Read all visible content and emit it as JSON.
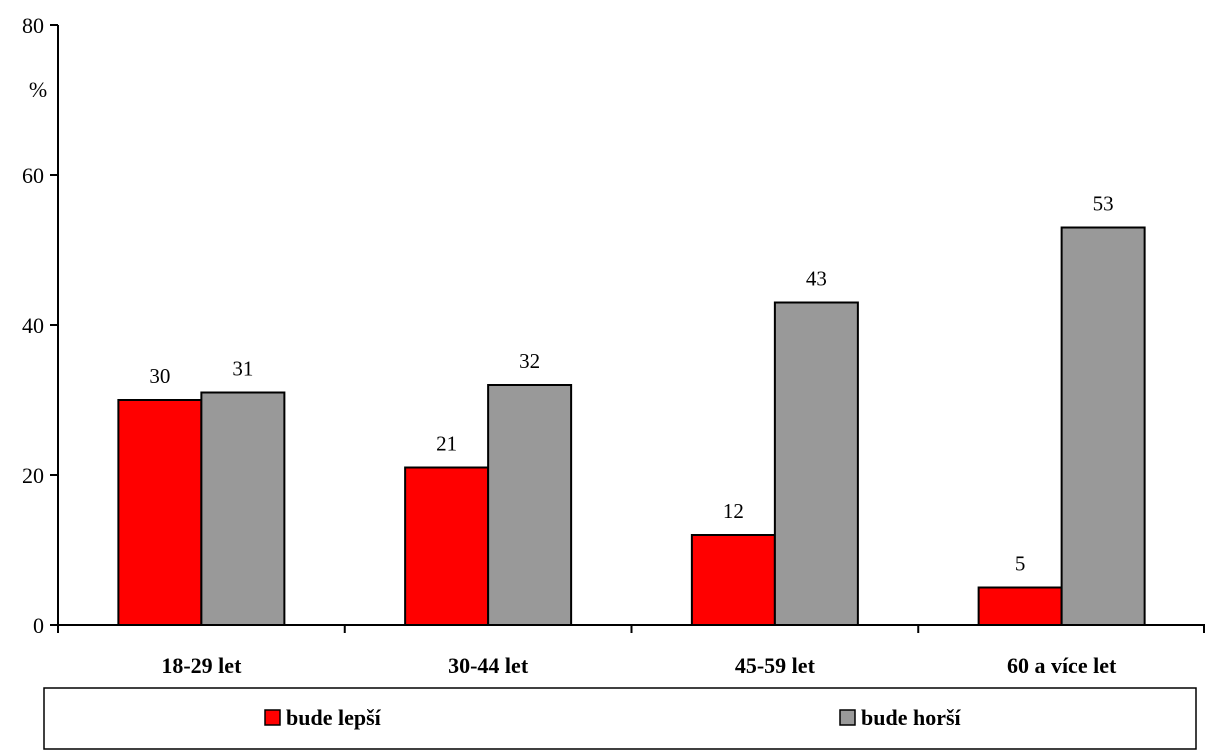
{
  "chart_data": {
    "type": "bar",
    "categories": [
      "18-29 let",
      "30-44 let",
      "45-59 let",
      "60 a více let"
    ],
    "series": [
      {
        "name": "bude lepší",
        "values": [
          30,
          21,
          12,
          5
        ],
        "color": "#ff0000"
      },
      {
        "name": "bude horší",
        "values": [
          31,
          32,
          43,
          53
        ],
        "color": "#999999"
      }
    ],
    "ylabel": "%",
    "ylim": [
      0,
      80
    ],
    "yticks": [
      0,
      20,
      40,
      60,
      80
    ],
    "grid": false,
    "legend_position": "bottom"
  }
}
